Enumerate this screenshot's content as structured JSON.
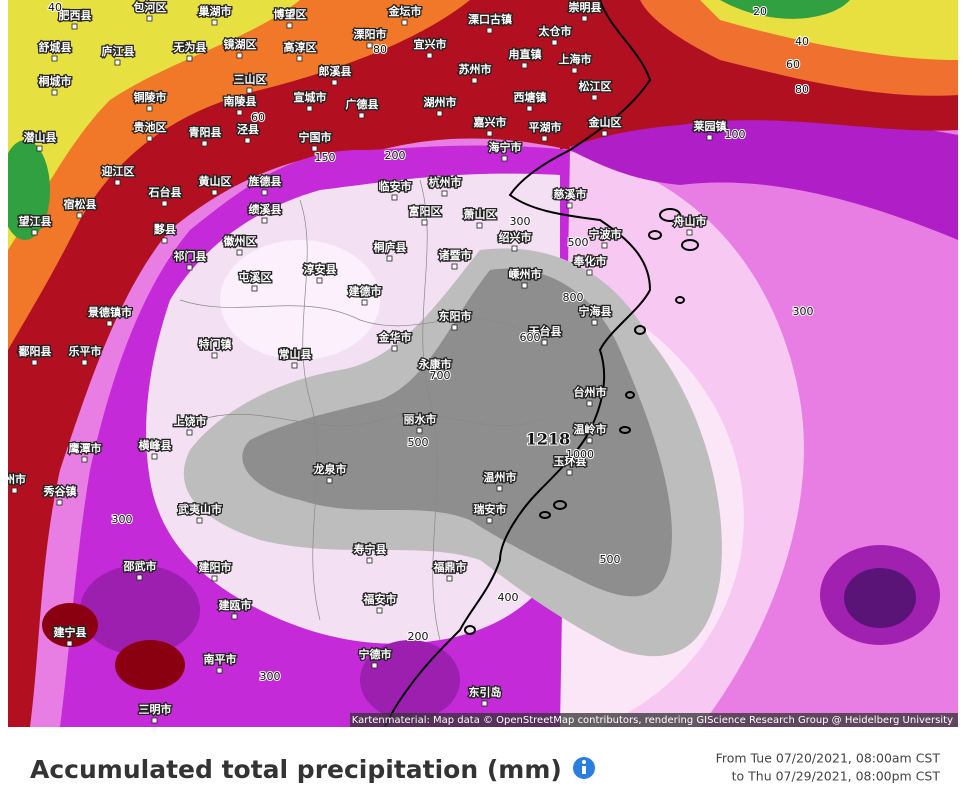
{
  "map": {
    "cities": [
      "肥西县",
      "包河区",
      "巢湖市",
      "博望区",
      "金坛市",
      "溧口古镇",
      "崇明县",
      "舒城县",
      "庐江县",
      "无为县",
      "镜湖区",
      "高淳区",
      "溧阳市",
      "宜兴市",
      "太仓市",
      "苏州市",
      "甪直镇",
      "桐城市",
      "三山区",
      "郎溪县",
      "上海市",
      "铜陵市",
      "南陵县",
      "宣城市",
      "广德县",
      "湖州市",
      "西塘镇",
      "松江区",
      "潜山县",
      "贵池区",
      "青阳县",
      "泾县",
      "宁国市",
      "嘉兴市",
      "平湖市",
      "金山区",
      "莱园镇",
      "迎江区",
      "石台县",
      "黄山区",
      "旌德县",
      "临安市",
      "杭州市",
      "海宁市",
      "慈溪市",
      "宿松县",
      "望江县",
      "黟县",
      "绩溪县",
      "富阳区",
      "萧山区",
      "舟山市",
      "祁门县",
      "徽州区",
      "桐庐县",
      "诸暨市",
      "绍兴市",
      "宁波市",
      "奉化市",
      "屯溪区",
      "淳安县",
      "嵊州市",
      "建德市",
      "宁海县",
      "景德镇市",
      "东阳市",
      "天台县",
      "鄱阳县",
      "乐平市",
      "特门镇",
      "常山县",
      "金华市",
      "永康市",
      "上饶市",
      "丽水市",
      "台州市",
      "温岭市",
      "玉环县",
      "鹰潭市",
      "横峰县",
      "龙泉市",
      "温州市",
      "瑞安市",
      "州市",
      "秀谷镇",
      "武夷山市",
      "邵武市",
      "建阳市",
      "寿宁县",
      "福鼎市",
      "福安市",
      "建瓯市",
      "建宁县",
      "南平市",
      "宁德市",
      "三明市",
      "东引岛"
    ],
    "contour_labels": [
      40,
      20,
      40,
      60,
      80,
      80,
      60,
      100,
      150,
      200,
      300,
      500,
      800,
      600,
      300,
      700,
      500,
      1218,
      1000,
      300,
      500,
      400,
      200,
      300
    ],
    "attribution": "Kartenmaterial: Map data © OpenStreetMap contributors, rendering GIScience Research Group @ Heidelberg University"
  },
  "footer": {
    "title": "Accumulated total precipitation (mm)",
    "period_from": "From Tue 07/20/2021, 08:00am CST",
    "period_to": "to Thu 07/29/2021, 08:00pm CST"
  }
}
